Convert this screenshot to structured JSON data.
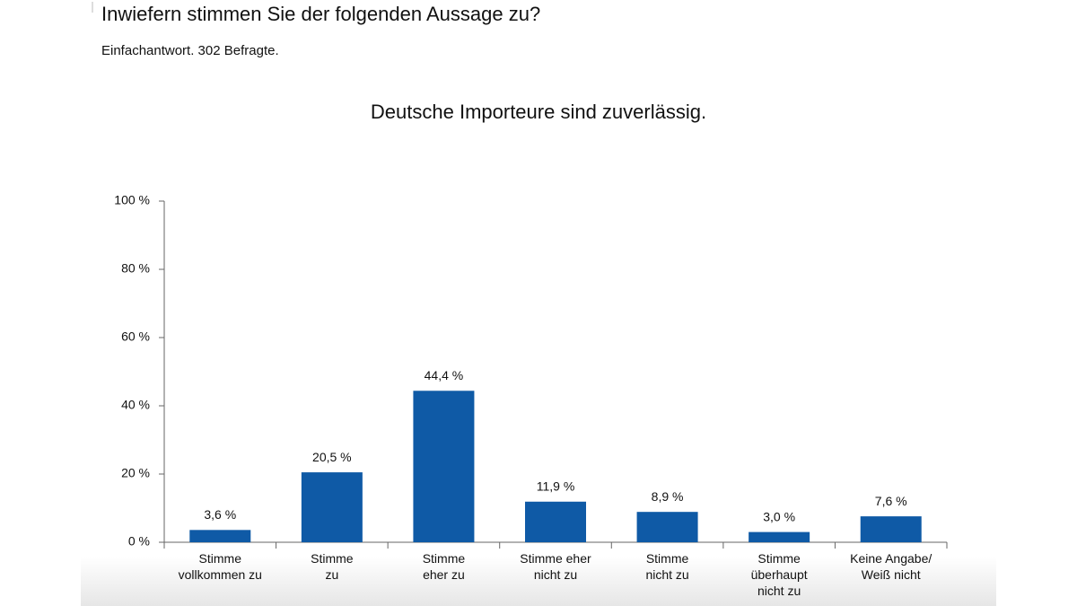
{
  "header": {
    "title": "Inwiefern stimmen Sie der folgenden Aussage zu?",
    "subtitle": "Einfachantwort. 302 Befragte."
  },
  "chart_data": {
    "type": "bar",
    "title": "Deutsche Importeure sind zuverlässig.",
    "categories": [
      "Stimme\nvollkommen zu",
      "Stimme\nzu",
      "Stimme\neher zu",
      "Stimme eher\nnicht zu",
      "Stimme\nnicht zu",
      "Stimme\nüberhaupt\nnicht zu",
      "Keine Angabe/\nWeiß nicht"
    ],
    "values": [
      3.6,
      20.5,
      44.4,
      11.9,
      8.9,
      3.0,
      7.6
    ],
    "value_labels": [
      "3,6 %",
      "20,5 %",
      "44,4 %",
      "11,9 %",
      "8,9 %",
      "3,0 %",
      "7,6 %"
    ],
    "color": "#0f5aa6",
    "ylim": [
      0,
      100
    ],
    "yticks": [
      {
        "value": 0,
        "label": "0 %"
      },
      {
        "value": 20,
        "label": "20 %"
      },
      {
        "value": 40,
        "label": "40 %"
      },
      {
        "value": 60,
        "label": "60 %"
      },
      {
        "value": 80,
        "label": "80 %"
      },
      {
        "value": 100,
        "label": "100 %"
      }
    ],
    "grid": false
  }
}
